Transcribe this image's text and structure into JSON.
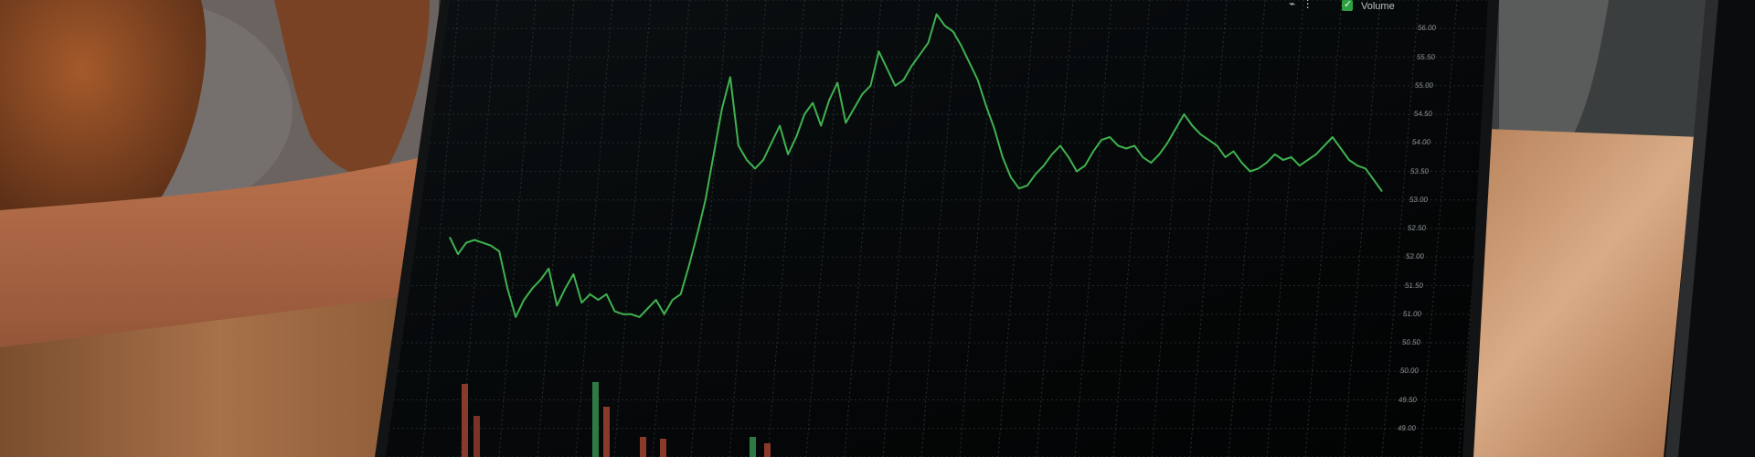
{
  "chart_data": {
    "type": "line",
    "title": "",
    "xlabel": "",
    "ylabel": "",
    "ylim": [
      48.5,
      56.5
    ],
    "y_ticks": [
      "56.00",
      "55.50",
      "55.00",
      "54.50",
      "54.00",
      "53.50",
      "53.00",
      "52.50",
      "52.00",
      "51.50",
      "51.00",
      "50.50",
      "50.00",
      "49.50",
      "49.00"
    ],
    "legend": [
      {
        "label": "Volume",
        "checked": true
      }
    ],
    "grid": true,
    "series": [
      {
        "color": "#3fb24f",
        "values": [
          52.35,
          52.05,
          52.25,
          52.3,
          52.25,
          52.2,
          52.1,
          51.45,
          50.95,
          51.25,
          51.45,
          51.6,
          51.8,
          51.15,
          51.45,
          51.7,
          51.2,
          51.35,
          51.25,
          51.35,
          51.05,
          51.0,
          51.0,
          50.95,
          51.1,
          51.25,
          51.0,
          51.25,
          51.35,
          51.85,
          52.4,
          53.0,
          53.8,
          54.6,
          55.15,
          53.95,
          53.7,
          53.55,
          53.7,
          54.0,
          54.3,
          53.8,
          54.1,
          54.5,
          54.7,
          54.3,
          54.75,
          55.05,
          54.35,
          54.6,
          54.85,
          55.0,
          55.6,
          55.3,
          55.0,
          55.1,
          55.35,
          55.55,
          55.75,
          56.25,
          56.05,
          55.95,
          55.7,
          55.4,
          55.1,
          54.65,
          54.25,
          53.75,
          53.4,
          53.2,
          53.25,
          53.45,
          53.6,
          53.8,
          53.95,
          53.75,
          53.5,
          53.6,
          53.85,
          54.05,
          54.1,
          53.95,
          53.9,
          53.95,
          53.75,
          53.65,
          53.8,
          54.0,
          54.25,
          54.5,
          54.3,
          54.15,
          54.05,
          53.95,
          53.75,
          53.85,
          53.65,
          53.5,
          53.55,
          53.65,
          53.8,
          53.7,
          53.75,
          53.6,
          53.7,
          53.8,
          53.95,
          54.1,
          53.9,
          53.7,
          53.6,
          53.55,
          53.35,
          53.15
        ]
      }
    ]
  }
}
